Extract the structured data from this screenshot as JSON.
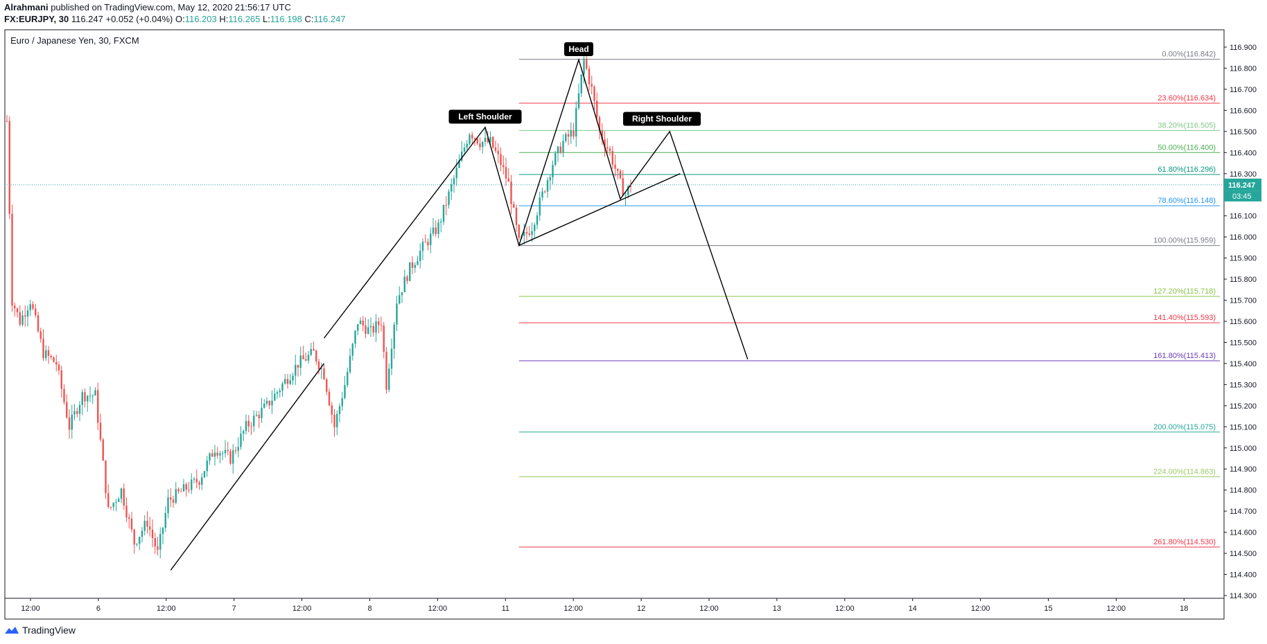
{
  "header": {
    "author": "Alrahmani",
    "published": "published on TradingView.com, May 12, 2020 21:56:17 UTC",
    "symbol": "FX:EURJPY, 30",
    "last": "116.247",
    "change": "+0.052 (+0.04%)",
    "o_label": "O:",
    "o": "116.203",
    "h_label": "H:",
    "h": "116.265",
    "l_label": "L:",
    "l": "116.198",
    "c_label": "C:",
    "c": "116.247"
  },
  "footer": {
    "brand": "TradingView",
    "icon": "tradingview-logo-icon"
  },
  "colors": {
    "up": "#26a69a",
    "down": "#ef5350",
    "axis": "#131722",
    "price_tag": "#26a69a"
  },
  "chart_data": {
    "type": "candlestick",
    "title": "Euro / Japanese Yen, 30, FXCM",
    "y_range": [
      114.26,
      116.98
    ],
    "y_ticks": [
      114.3,
      114.4,
      114.5,
      114.6,
      114.7,
      114.8,
      114.9,
      115.0,
      115.1,
      115.2,
      115.3,
      115.4,
      115.5,
      115.6,
      115.7,
      115.8,
      115.9,
      116.0,
      116.1,
      116.2,
      116.3,
      116.4,
      116.5,
      116.6,
      116.7,
      116.8,
      116.9
    ],
    "x_ticks": [
      "12:00",
      "6",
      "12:00",
      "7",
      "12:00",
      "8",
      "12:00",
      "11",
      "12:00",
      "12",
      "12:00",
      "13",
      "12:00",
      "14",
      "12:00",
      "15",
      "12:00",
      "18"
    ],
    "last_price": "116.247",
    "countdown": "03:45",
    "price_path": [
      [
        0,
        116.55
      ],
      [
        2,
        115.7
      ],
      [
        5,
        115.6
      ],
      [
        9,
        115.7
      ],
      [
        14,
        115.45
      ],
      [
        19,
        115.4
      ],
      [
        24,
        115.1
      ],
      [
        29,
        115.25
      ],
      [
        34,
        115.25
      ],
      [
        39,
        114.7
      ],
      [
        44,
        114.8
      ],
      [
        49,
        114.55
      ],
      [
        54,
        114.65
      ],
      [
        58,
        114.5
      ],
      [
        62,
        114.75
      ],
      [
        68,
        114.8
      ],
      [
        74,
        114.85
      ],
      [
        80,
        115.0
      ],
      [
        86,
        114.95
      ],
      [
        92,
        115.1
      ],
      [
        100,
        115.2
      ],
      [
        106,
        115.3
      ],
      [
        112,
        115.4
      ],
      [
        118,
        115.45
      ],
      [
        122,
        115.35
      ],
      [
        126,
        115.1
      ],
      [
        130,
        115.3
      ],
      [
        135,
        115.6
      ],
      [
        140,
        115.55
      ],
      [
        144,
        115.6
      ],
      [
        146,
        115.3
      ],
      [
        150,
        115.7
      ],
      [
        155,
        115.85
      ],
      [
        160,
        115.95
      ],
      [
        166,
        116.05
      ],
      [
        170,
        116.2
      ],
      [
        174,
        116.35
      ],
      [
        178,
        116.5
      ],
      [
        182,
        116.45
      ],
      [
        186,
        116.45
      ],
      [
        190,
        116.35
      ],
      [
        193,
        116.25
      ],
      [
        197,
        115.97
      ],
      [
        202,
        116.05
      ],
      [
        206,
        116.2
      ],
      [
        210,
        116.35
      ],
      [
        214,
        116.45
      ],
      [
        218,
        116.5
      ],
      [
        222,
        116.84
      ],
      [
        225,
        116.7
      ],
      [
        228,
        116.5
      ],
      [
        232,
        116.4
      ],
      [
        236,
        116.25
      ],
      [
        238,
        116.2
      ],
      [
        240,
        116.25
      ]
    ],
    "patterns": [
      {
        "points": [
          [
            63,
            114.42
          ],
          [
            122,
            115.4
          ]
        ]
      },
      {
        "points": [
          [
            122,
            115.52
          ],
          [
            184,
            116.52
          ],
          [
            197,
            115.96
          ],
          [
            220,
            116.84
          ],
          [
            236,
            116.18
          ],
          [
            255,
            116.5
          ],
          [
            285,
            115.42
          ]
        ]
      },
      {
        "points": [
          [
            197,
            115.96
          ],
          [
            259,
            116.3
          ]
        ]
      }
    ],
    "labels": [
      {
        "text": "Left Shoulder",
        "x": 184,
        "y": 116.57
      },
      {
        "text": "Head",
        "x": 220,
        "y": 116.89
      },
      {
        "text": "Right Shoulder",
        "x": 252,
        "y": 116.56
      }
    ],
    "fib_start": 197,
    "fib": [
      {
        "label": "0.00%(116.842)",
        "value": 116.842,
        "color": "#787b86"
      },
      {
        "label": "23.60%(116.634)",
        "value": 116.634,
        "color": "#f23645"
      },
      {
        "label": "38.20%(116.505)",
        "value": 116.505,
        "color": "#81c784"
      },
      {
        "label": "50.00%(116.400)",
        "value": 116.4,
        "color": "#4caf50"
      },
      {
        "label": "61.80%(116.296)",
        "value": 116.296,
        "color": "#089981"
      },
      {
        "label": "78.60%(116.148)",
        "value": 116.148,
        "color": "#2196f3"
      },
      {
        "label": "100.00%(115.959)",
        "value": 115.959,
        "color": "#787b86"
      },
      {
        "label": "127.20%(115.718)",
        "value": 115.718,
        "color": "#8bc34a"
      },
      {
        "label": "141.40%(115.593)",
        "value": 115.593,
        "color": "#f23645"
      },
      {
        "label": "161.80%(115.413)",
        "value": 115.413,
        "color": "#673ab7"
      },
      {
        "label": "200.00%(115.075)",
        "value": 115.075,
        "color": "#26a69a"
      },
      {
        "label": "224.00%(114.863)",
        "value": 114.863,
        "color": "#9ccc65"
      },
      {
        "label": "261.80%(114.530)",
        "value": 114.53,
        "color": "#f23645"
      }
    ]
  }
}
